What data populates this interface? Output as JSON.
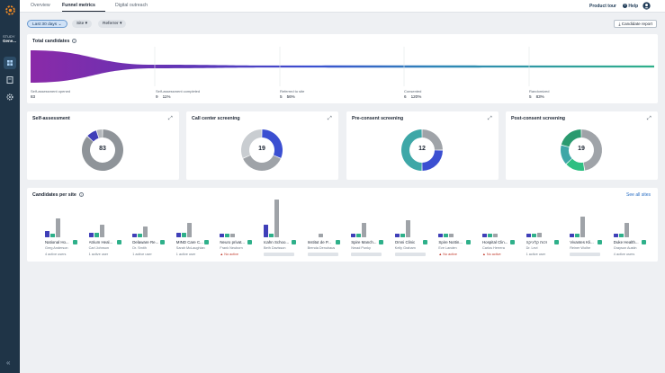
{
  "sidebar": {
    "study_label": "STUDY",
    "study_name": "Gene...",
    "items": [
      {
        "icon": "dashboard-icon",
        "active": true
      },
      {
        "icon": "document-icon",
        "active": false
      },
      {
        "icon": "gear-icon",
        "active": false
      }
    ],
    "collapse_label": "«"
  },
  "tabs": [
    {
      "label": "Overview",
      "active": false
    },
    {
      "label": "Funnel metrics",
      "active": true
    },
    {
      "label": "Digital outreach",
      "active": false
    }
  ],
  "header": {
    "product_tour": "Product tour",
    "help": "Help"
  },
  "filters": {
    "date": "Last 30 days",
    "site": "Site",
    "referrer": "Referrer",
    "candidate_report": "Candidate report"
  },
  "total_candidates": {
    "title": "Total candidates",
    "stages": [
      {
        "label": "Self-assessment opened",
        "count": "83",
        "percent": ""
      },
      {
        "label": "Self-assessment completed",
        "count": "9",
        "percent": "11%"
      },
      {
        "label": "Referred to site",
        "count": "5",
        "percent": "56%"
      },
      {
        "label": "Consented",
        "count": "6",
        "percent": "120%"
      },
      {
        "label": "Randomized",
        "count": "5",
        "percent": "83%"
      }
    ]
  },
  "donuts": [
    {
      "title": "Self-assessment",
      "center": "83",
      "segments": [
        {
          "value": 72,
          "color": "#8f9499"
        },
        {
          "value": 7,
          "color": "#3f3fb8"
        },
        {
          "value": 4,
          "color": "#b3b7bb"
        }
      ]
    },
    {
      "title": "Call center screening",
      "center": "19",
      "segments": [
        {
          "value": 6,
          "color": "#3b4fd1"
        },
        {
          "value": 7,
          "color": "#9fa3a8"
        },
        {
          "value": 6,
          "color": "#c9cdd1"
        }
      ]
    },
    {
      "title": "Pre-consent screening",
      "center": "12",
      "segments": [
        {
          "value": 3,
          "color": "#9fa3a8"
        },
        {
          "value": 3,
          "color": "#3b4fd1"
        },
        {
          "value": 6,
          "color": "#3ea7a7"
        }
      ]
    },
    {
      "title": "Post-consent screening",
      "center": "19",
      "segments": [
        {
          "value": 9,
          "color": "#9fa3a8"
        },
        {
          "value": 3,
          "color": "#2fbf82"
        },
        {
          "value": 3,
          "color": "#3ea7a7"
        },
        {
          "value": 4,
          "color": "#2a9a6f"
        }
      ]
    }
  ],
  "sites_card": {
    "title": "Candidates per site",
    "see_all": "See all sites"
  },
  "sites": [
    {
      "name": "National Ho...",
      "user": "Greg Anderson",
      "active": "4 active users",
      "inactive": false,
      "bars": [
        3,
        1,
        9
      ]
    },
    {
      "name": "Atrium Heal...",
      "user": "Carl Johnson",
      "active": "1 active user",
      "inactive": false,
      "bars": [
        2,
        2,
        6
      ]
    },
    {
      "name": "Delaware Re...",
      "user": "Dr. Smith",
      "active": "1 active user",
      "inactive": false,
      "bars": [
        1,
        1,
        5
      ]
    },
    {
      "name": "MIND Care C...",
      "user": "Sarah McLaughlan",
      "active": "1 active user",
      "inactive": false,
      "bars": [
        2,
        2,
        7
      ]
    },
    {
      "name": "Neuro privat...",
      "user": "Frank Neuborn",
      "active": "No active",
      "inactive": true,
      "bars": [
        1,
        1,
        1
      ]
    },
    {
      "name": "Icahn Schoo...",
      "user": "Beth Davisson",
      "active": "",
      "inactive": false,
      "bars": [
        6,
        1,
        18
      ]
    },
    {
      "name": "Institut de P...",
      "user": "Brenda Denuhaus",
      "active": "",
      "inactive": false,
      "bars": [
        0,
        0,
        1
      ]
    },
    {
      "name": "Spire Manch...",
      "user": "Nmad Punky",
      "active": "",
      "inactive": false,
      "bars": [
        1,
        1,
        7
      ]
    },
    {
      "name": "Omni Clinic",
      "user": "Kelly Graham",
      "active": "",
      "inactive": false,
      "bars": [
        1,
        1,
        8
      ]
    },
    {
      "name": "Spire Nottin...",
      "user": "Eve Landen",
      "active": "No active",
      "inactive": true,
      "bars": [
        1,
        1,
        1
      ]
    },
    {
      "name": "Hospital Clin...",
      "user": "Carlos Herrera",
      "active": "No active",
      "inactive": true,
      "bars": [
        1,
        1,
        1
      ]
    },
    {
      "name": "זכות קליניקה",
      "user": "Dr. Levi",
      "active": "1 active user",
      "inactive": false,
      "bars": [
        1,
        1,
        2
      ]
    },
    {
      "name": "Vivantes Kli...",
      "user": "Reiner Wolhe",
      "active": "",
      "inactive": false,
      "bars": [
        1,
        1,
        10
      ]
    },
    {
      "name": "Duke Health...",
      "user": "Grayson Austin",
      "active": "4 active users",
      "inactive": false,
      "bars": [
        1,
        1,
        7
      ]
    }
  ]
}
